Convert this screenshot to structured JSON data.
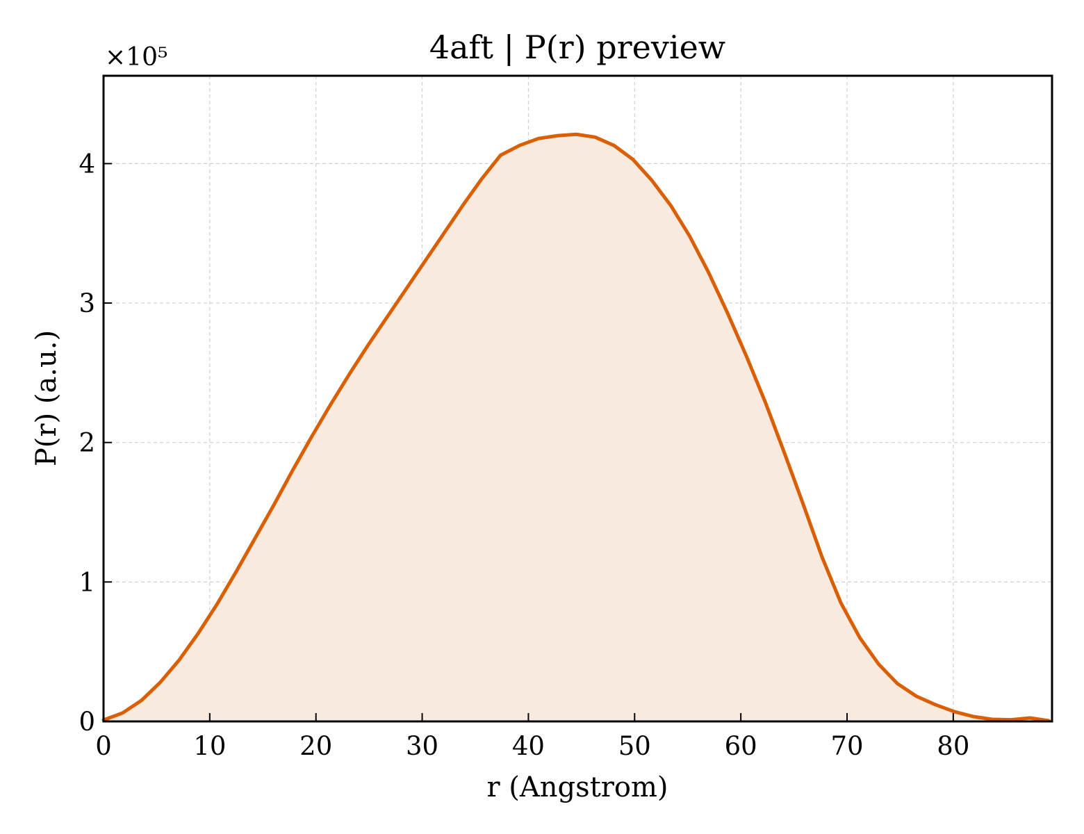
{
  "chart_data": {
    "type": "area",
    "title": "4aft | P(r) preview",
    "xlabel": "r (Angstrom)",
    "ylabel": "P(r) (a.u.)",
    "y_offset_label": "×10⁵",
    "y_scale": 100000,
    "xlim": [
      0,
      89.3
    ],
    "ylim": [
      0,
      463000
    ],
    "x_ticks": [
      0,
      10,
      20,
      30,
      40,
      50,
      60,
      70,
      80
    ],
    "y_ticks": [
      0,
      1,
      2,
      3,
      4
    ],
    "grid": true,
    "line_color": "#d95f02",
    "fill_color": "#f8eadf",
    "series": [
      {
        "x": [
          0,
          1.78,
          3.56,
          5.34,
          7.12,
          8.9,
          10.68,
          12.46,
          14.24,
          16.02,
          17.8,
          19.58,
          21.36,
          23.14,
          24.92,
          26.7,
          28.48,
          30.26,
          32.04,
          33.82,
          35.6,
          37.38,
          39.16,
          40.94,
          42.72,
          44.5,
          46.28,
          48.06,
          49.84,
          51.62,
          53.4,
          55.18,
          56.96,
          58.74,
          60.52,
          62.3,
          64.08,
          65.86,
          67.64,
          69.42,
          71.2,
          72.98,
          74.76,
          76.54,
          78.32,
          80.1,
          81.88,
          83.66,
          85.44,
          87.22,
          89.0
        ],
        "y": [
          1000,
          6000,
          15000,
          28000,
          44000,
          63000,
          84000,
          107000,
          131000,
          155000,
          180000,
          204000,
          227000,
          249000,
          270000,
          290000,
          310000,
          330000,
          350000,
          370000,
          389000,
          406000,
          413000,
          418000,
          420000,
          421000,
          419000,
          413000,
          403000,
          388000,
          370000,
          348000,
          322000,
          293000,
          262000,
          229000,
          193000,
          156000,
          118000,
          85000,
          60000,
          41000,
          27000,
          18000,
          12000,
          7000,
          3500,
          1500,
          1200,
          2500,
          500
        ]
      }
    ]
  }
}
